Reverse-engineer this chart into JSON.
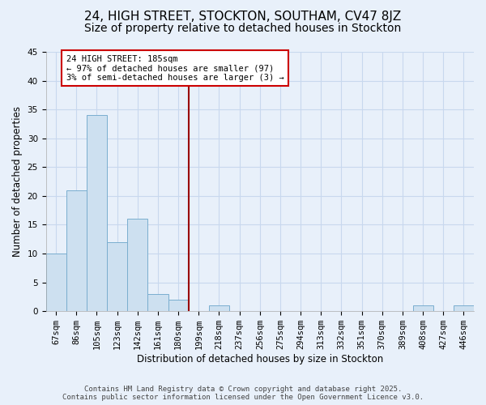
{
  "title": "24, HIGH STREET, STOCKTON, SOUTHAM, CV47 8JZ",
  "subtitle": "Size of property relative to detached houses in Stockton",
  "xlabel": "Distribution of detached houses by size in Stockton",
  "ylabel": "Number of detached properties",
  "bar_labels": [
    "67sqm",
    "86sqm",
    "105sqm",
    "123sqm",
    "142sqm",
    "161sqm",
    "180sqm",
    "199sqm",
    "218sqm",
    "237sqm",
    "256sqm",
    "275sqm",
    "294sqm",
    "313sqm",
    "332sqm",
    "351sqm",
    "370sqm",
    "389sqm",
    "408sqm",
    "427sqm",
    "446sqm"
  ],
  "bar_values": [
    10,
    21,
    34,
    12,
    16,
    3,
    2,
    0,
    1,
    0,
    0,
    0,
    0,
    0,
    0,
    0,
    0,
    0,
    1,
    0,
    1
  ],
  "bar_color": "#cde0f0",
  "bar_edge_color": "#7aaecf",
  "vline_x_index": 6.5,
  "vline_color": "#990000",
  "annotation_title": "24 HIGH STREET: 185sqm",
  "annotation_line1": "← 97% of detached houses are smaller (97)",
  "annotation_line2": "3% of semi-detached houses are larger (3) →",
  "annotation_box_color": "#ffffff",
  "annotation_box_edge": "#cc0000",
  "ylim": [
    0,
    45
  ],
  "yticks": [
    0,
    5,
    10,
    15,
    20,
    25,
    30,
    35,
    40,
    45
  ],
  "footer_line1": "Contains HM Land Registry data © Crown copyright and database right 2025.",
  "footer_line2": "Contains public sector information licensed under the Open Government Licence v3.0.",
  "bg_color": "#e8f0fa",
  "grid_color": "#c8d8ee",
  "title_fontsize": 11,
  "subtitle_fontsize": 10,
  "axis_label_fontsize": 8.5,
  "tick_fontsize": 7.5,
  "annotation_fontsize": 7.5
}
